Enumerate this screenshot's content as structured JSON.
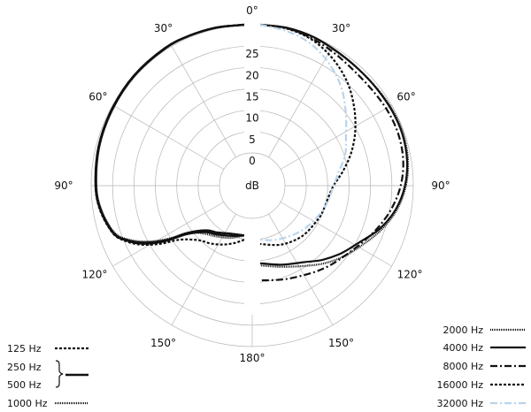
{
  "chart_data": {
    "type": "polar",
    "unit_label": "dB",
    "radial_ticks": [
      "0",
      "5",
      "10",
      "15",
      "20",
      "25"
    ],
    "radial_values": [
      0,
      5,
      10,
      15,
      20,
      25
    ],
    "radial_range": [
      0,
      30
    ],
    "angle_labels": [
      {
        "angle": 0,
        "text": "0°",
        "side": "center"
      },
      {
        "angle": 30,
        "text": "30°",
        "side": "left"
      },
      {
        "angle": 60,
        "text": "60°",
        "side": "left"
      },
      {
        "angle": 90,
        "text": "90°",
        "side": "left"
      },
      {
        "angle": 120,
        "text": "120°",
        "side": "left"
      },
      {
        "angle": 150,
        "text": "150°",
        "side": "left"
      },
      {
        "angle": 180,
        "text": "180°",
        "side": "center"
      },
      {
        "angle": 30,
        "text": "30°",
        "side": "right"
      },
      {
        "angle": 60,
        "text": "60°",
        "side": "right"
      },
      {
        "angle": 90,
        "text": "90°",
        "side": "right"
      },
      {
        "angle": 120,
        "text": "120°",
        "side": "right"
      },
      {
        "angle": 150,
        "text": "150°",
        "side": "right"
      }
    ],
    "grid": true,
    "left_half_series": [
      {
        "name": "125 Hz",
        "dash": "3,2",
        "width": 2.2,
        "color": "#111111",
        "points": [
          [
            0,
            0
          ],
          [
            10,
            0.1
          ],
          [
            20,
            0.3
          ],
          [
            30,
            0.6
          ],
          [
            45,
            1.3
          ],
          [
            60,
            2
          ],
          [
            75,
            2.4
          ],
          [
            90,
            2.9
          ],
          [
            100,
            3.5
          ],
          [
            110,
            5
          ],
          [
            115,
            7
          ],
          [
            120,
            10
          ],
          [
            125,
            14
          ],
          [
            130,
            18
          ],
          [
            140,
            21
          ],
          [
            150,
            22
          ],
          [
            160,
            23
          ],
          [
            170,
            24
          ],
          [
            180,
            25
          ]
        ]
      },
      {
        "name": "250 Hz",
        "dash": "",
        "width": 2.4,
        "color": "#111111",
        "points": [
          [
            0,
            0
          ],
          [
            10,
            0.1
          ],
          [
            20,
            0.3
          ],
          [
            30,
            0.6
          ],
          [
            45,
            1.3
          ],
          [
            60,
            2
          ],
          [
            75,
            2.5
          ],
          [
            90,
            3
          ],
          [
            100,
            3.7
          ],
          [
            110,
            5.2
          ],
          [
            115,
            7.5
          ],
          [
            120,
            11
          ],
          [
            125,
            15.5
          ],
          [
            130,
            20.5
          ],
          [
            140,
            24
          ],
          [
            150,
            25
          ],
          [
            165,
            26
          ],
          [
            180,
            26
          ]
        ]
      },
      {
        "name": "500 Hz",
        "dash": "",
        "width": 2.4,
        "color": "#111111",
        "points": [
          [
            0,
            0
          ],
          [
            10,
            0.1
          ],
          [
            20,
            0.3
          ],
          [
            30,
            0.5
          ],
          [
            45,
            1.2
          ],
          [
            60,
            1.9
          ],
          [
            75,
            2.4
          ],
          [
            90,
            2.9
          ],
          [
            100,
            3.6
          ],
          [
            110,
            5.1
          ],
          [
            115,
            7.3
          ],
          [
            120,
            10.5
          ],
          [
            125,
            15
          ],
          [
            130,
            20
          ],
          [
            140,
            23.5
          ],
          [
            150,
            24.5
          ],
          [
            165,
            25.5
          ],
          [
            180,
            26
          ]
        ]
      },
      {
        "name": "1000 Hz",
        "dash": "1,1",
        "width": 2.2,
        "color": "#111111",
        "points": [
          [
            0,
            0
          ],
          [
            10,
            0.1
          ],
          [
            20,
            0.3
          ],
          [
            30,
            0.6
          ],
          [
            45,
            1.4
          ],
          [
            60,
            2.1
          ],
          [
            75,
            2.6
          ],
          [
            90,
            3.1
          ],
          [
            100,
            3.8
          ],
          [
            110,
            5.4
          ],
          [
            115,
            7.8
          ],
          [
            120,
            11.5
          ],
          [
            125,
            16
          ],
          [
            130,
            20.5
          ],
          [
            140,
            23
          ],
          [
            150,
            24
          ],
          [
            165,
            25
          ],
          [
            180,
            26
          ]
        ]
      }
    ],
    "right_half_series": [
      {
        "name": "2000 Hz",
        "dash": "1,1",
        "width": 2.2,
        "color": "#111111",
        "points": [
          [
            0,
            0
          ],
          [
            10,
            0.2
          ],
          [
            20,
            0.8
          ],
          [
            30,
            1.6
          ],
          [
            40,
            2
          ],
          [
            50,
            2.1
          ],
          [
            60,
            2
          ],
          [
            70,
            2.1
          ],
          [
            80,
            2.6
          ],
          [
            90,
            3.6
          ],
          [
            100,
            5.2
          ],
          [
            110,
            7.5
          ],
          [
            120,
            10
          ],
          [
            130,
            12
          ],
          [
            140,
            14
          ],
          [
            150,
            16
          ],
          [
            165,
            18
          ],
          [
            180,
            19
          ]
        ]
      },
      {
        "name": "4000 Hz",
        "dash": "",
        "width": 2.2,
        "color": "#111111",
        "points": [
          [
            0,
            0
          ],
          [
            10,
            0.2
          ],
          [
            20,
            0.7
          ],
          [
            30,
            1.5
          ],
          [
            40,
            2
          ],
          [
            50,
            2.2
          ],
          [
            60,
            2.2
          ],
          [
            70,
            2.3
          ],
          [
            80,
            2.8
          ],
          [
            90,
            3.8
          ],
          [
            100,
            5.5
          ],
          [
            110,
            8
          ],
          [
            120,
            11
          ],
          [
            130,
            13
          ],
          [
            140,
            15
          ],
          [
            150,
            17
          ],
          [
            165,
            18.5
          ],
          [
            180,
            19.5
          ]
        ]
      },
      {
        "name": "8000 Hz",
        "dash": "8,3,2,3",
        "width": 2.2,
        "color": "#111111",
        "points": [
          [
            0,
            0
          ],
          [
            10,
            0.3
          ],
          [
            20,
            1.2
          ],
          [
            30,
            2.2
          ],
          [
            40,
            3
          ],
          [
            50,
            3.2
          ],
          [
            60,
            3.1
          ],
          [
            70,
            3.2
          ],
          [
            80,
            3.7
          ],
          [
            90,
            4.8
          ],
          [
            100,
            6.5
          ],
          [
            110,
            8.5
          ],
          [
            120,
            10.5
          ],
          [
            130,
            12
          ],
          [
            140,
            13
          ],
          [
            150,
            14
          ],
          [
            165,
            15
          ],
          [
            180,
            15.5
          ]
        ]
      },
      {
        "name": "16000 Hz",
        "dash": "3,2",
        "width": 2.2,
        "color": "#111111",
        "points": [
          [
            0,
            0
          ],
          [
            10,
            0.4
          ],
          [
            20,
            1.5
          ],
          [
            30,
            3.5
          ],
          [
            40,
            6
          ],
          [
            50,
            9
          ],
          [
            60,
            12
          ],
          [
            70,
            15
          ],
          [
            80,
            18
          ],
          [
            90,
            20.5
          ],
          [
            100,
            21.5
          ],
          [
            110,
            21.8
          ],
          [
            120,
            22
          ],
          [
            140,
            22.3
          ],
          [
            160,
            23
          ],
          [
            180,
            24
          ]
        ]
      },
      {
        "name": "32000 Hz",
        "dash": "8,3,2,3",
        "width": 2.2,
        "color": "#b8d4ec",
        "points": [
          [
            0,
            0
          ],
          [
            10,
            1
          ],
          [
            20,
            2.5
          ],
          [
            30,
            5
          ],
          [
            40,
            8
          ],
          [
            50,
            11.5
          ],
          [
            60,
            14.5
          ],
          [
            70,
            16.5
          ],
          [
            80,
            19
          ],
          [
            90,
            20.5
          ],
          [
            100,
            21.2
          ],
          [
            110,
            21.8
          ],
          [
            120,
            22.5
          ],
          [
            130,
            23
          ],
          [
            140,
            23.5
          ],
          [
            150,
            24
          ],
          [
            165,
            24.5
          ],
          [
            180,
            25
          ]
        ]
      }
    ],
    "legend_left": [
      {
        "label": "125 Hz",
        "series": "125 Hz"
      },
      {
        "label": "250 Hz",
        "series": "250 Hz",
        "group": "250-500"
      },
      {
        "label": "500 Hz",
        "series": "500 Hz",
        "group": "250-500"
      },
      {
        "label": "1000 Hz",
        "series": "1000 Hz"
      }
    ],
    "legend_right": [
      {
        "label": "2000 Hz",
        "series": "2000 Hz"
      },
      {
        "label": "4000 Hz",
        "series": "4000 Hz"
      },
      {
        "label": "8000 Hz",
        "series": "8000 Hz"
      },
      {
        "label": "16000 Hz",
        "series": "16000 Hz"
      },
      {
        "label": "32000 Hz",
        "series": "32000 Hz"
      }
    ]
  }
}
